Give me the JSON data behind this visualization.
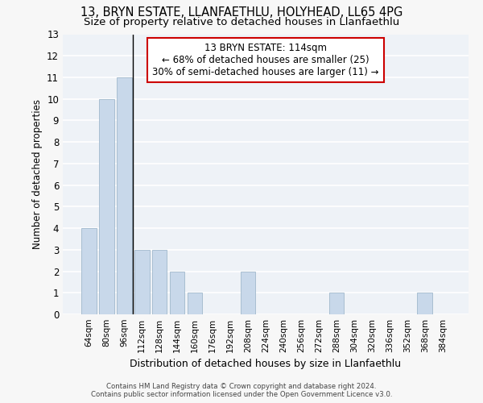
{
  "title1": "13, BRYN ESTATE, LLANFAETHLU, HOLYHEAD, LL65 4PG",
  "title2": "Size of property relative to detached houses in Llanfaethlu",
  "xlabel": "Distribution of detached houses by size in Llanfaethlu",
  "ylabel": "Number of detached properties",
  "categories": [
    "64sqm",
    "80sqm",
    "96sqm",
    "112sqm",
    "128sqm",
    "144sqm",
    "160sqm",
    "176sqm",
    "192sqm",
    "208sqm",
    "224sqm",
    "240sqm",
    "256sqm",
    "272sqm",
    "288sqm",
    "304sqm",
    "320sqm",
    "336sqm",
    "352sqm",
    "368sqm",
    "384sqm"
  ],
  "values": [
    4,
    10,
    11,
    3,
    3,
    2,
    1,
    0,
    0,
    2,
    0,
    0,
    0,
    0,
    1,
    0,
    0,
    0,
    0,
    1,
    0
  ],
  "bar_color": "#c8d8ea",
  "bar_edge_color": "#a0b8cc",
  "property_line_x": 2.5,
  "annotation_line1": "13 BRYN ESTATE: 114sqm",
  "annotation_line2": "← 68% of detached houses are smaller (25)",
  "annotation_line3": "30% of semi-detached houses are larger (11) →",
  "annotation_box_color": "#cc0000",
  "ylim": [
    0,
    13
  ],
  "yticks": [
    0,
    1,
    2,
    3,
    4,
    5,
    6,
    7,
    8,
    9,
    10,
    11,
    12,
    13
  ],
  "footer1": "Contains HM Land Registry data © Crown copyright and database right 2024.",
  "footer2": "Contains public sector information licensed under the Open Government Licence v3.0.",
  "bg_color": "#eef2f7",
  "grid_color": "#ffffff",
  "title_fontsize": 10.5,
  "subtitle_fontsize": 9.5,
  "fig_bg": "#f7f7f7"
}
